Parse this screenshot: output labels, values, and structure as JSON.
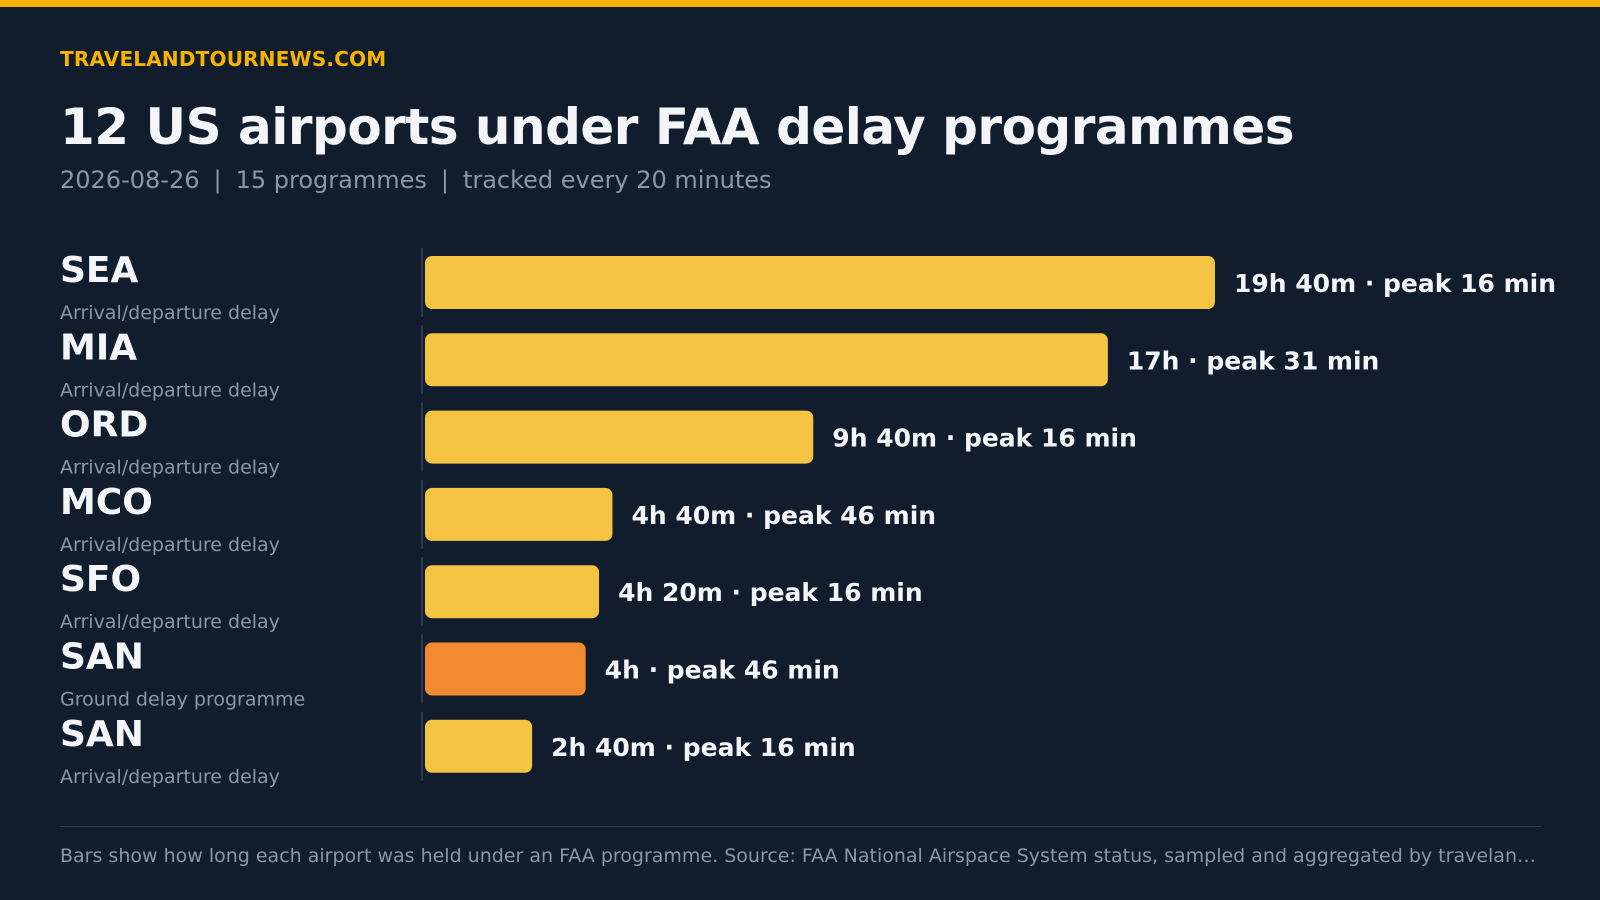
{
  "header": {
    "brand": "TRAVELANDTOURNEWS.COM",
    "title": "12 US airports under FAA delay programmes",
    "subtitle_date": "2026-08-26",
    "subtitle_count": "15 programmes",
    "subtitle_cadence": "tracked every 20 minutes",
    "subtitle_separator": "|"
  },
  "colors": {
    "accent": "#f6b400",
    "bar_arrival_departure": "#f4c342",
    "bar_ground_delay": "#f48a30",
    "background": "#111c2d"
  },
  "chart_data": {
    "type": "bar",
    "orientation": "horizontal",
    "value_unit": "hours",
    "categories": [
      "SEA",
      "MIA",
      "ORD",
      "MCO",
      "SFO",
      "SAN",
      "SAN"
    ],
    "programme_types": [
      "Arrival/departure delay",
      "Arrival/departure delay",
      "Arrival/departure delay",
      "Arrival/departure delay",
      "Arrival/departure delay",
      "Ground delay programme",
      "Arrival/departure delay"
    ],
    "values": [
      19.6667,
      17,
      9.6667,
      4.6667,
      4.3333,
      4,
      2.6667
    ],
    "duration_labels": [
      "19h 40m",
      "17h",
      "9h 40m",
      "4h 40m",
      "4h 20m",
      "4h",
      "2h 40m"
    ],
    "peak_labels": [
      "peak 16 min",
      "peak 31 min",
      "peak 16 min",
      "peak 46 min",
      "peak 16 min",
      "peak 46 min",
      "peak 16 min"
    ],
    "label_separator": "·",
    "xlim": [
      0,
      19.6667
    ],
    "grid": false,
    "legend": "none"
  },
  "footer": {
    "note": "Bars show how long each airport was held under an FAA programme. Source: FAA National Airspace System status, sampled and aggregated by travelandtour…"
  }
}
